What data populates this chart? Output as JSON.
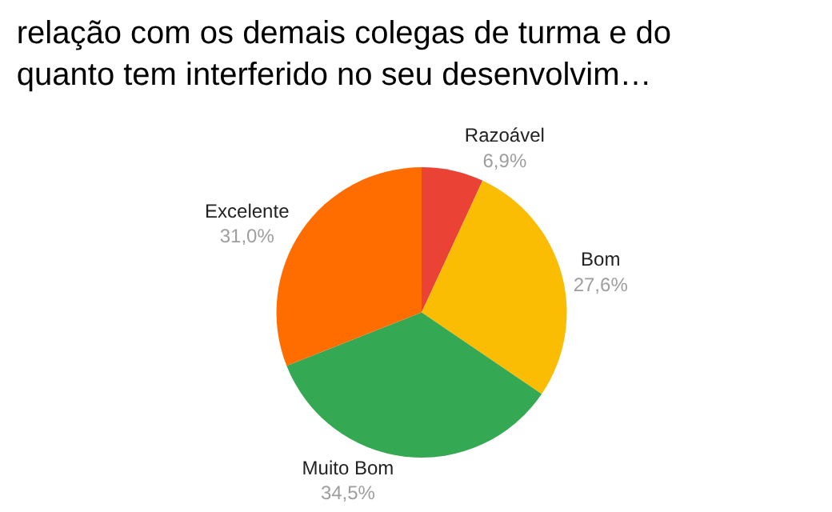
{
  "chart_data": {
    "type": "pie",
    "title": "relação com os demais colegas de turma e do quanto tem interferido no seu desenvolvim…",
    "categories": [
      "Razoável",
      "Bom",
      "Muito Bom",
      "Excelente"
    ],
    "values": [
      6.9,
      27.6,
      34.5,
      31.0
    ],
    "value_labels": [
      "6,9%",
      "27,6%",
      "34,5%",
      "31,0%"
    ],
    "colors": [
      "#ea4335",
      "#fbbc04",
      "#34a853",
      "#ff6d01"
    ],
    "legend": false
  }
}
